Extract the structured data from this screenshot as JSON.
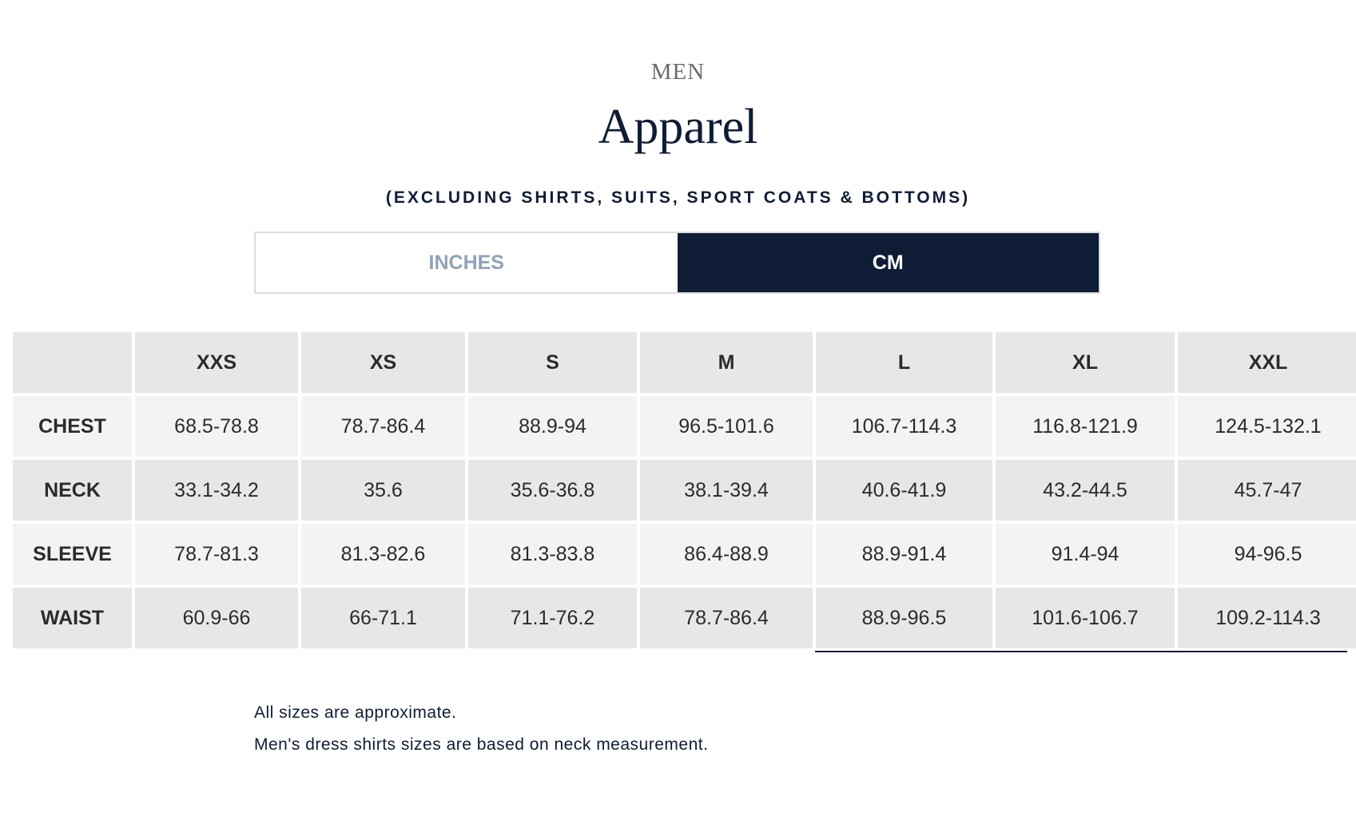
{
  "header": {
    "kicker": "MEN",
    "title": "Apparel",
    "subtitle": "(EXCLUDING SHIRTS, SUITS, SPORT COATS & BOTTOMS)"
  },
  "unit_toggle": {
    "options": [
      "INCHES",
      "CM"
    ],
    "selected": "CM"
  },
  "size_table": {
    "columns": [
      "",
      "XXS",
      "XS",
      "S",
      "M",
      "L",
      "XL",
      "XXL"
    ],
    "rows": [
      {
        "label": "CHEST",
        "values": [
          "68.5-78.8",
          "78.7-86.4",
          "88.9-94",
          "96.5-101.6",
          "106.7-114.3",
          "116.8-121.9",
          "124.5-132.1"
        ]
      },
      {
        "label": "NECK",
        "values": [
          "33.1-34.2",
          "35.6",
          "35.6-36.8",
          "38.1-39.4",
          "40.6-41.9",
          "43.2-44.5",
          "45.7-47"
        ]
      },
      {
        "label": "SLEEVE",
        "values": [
          "78.7-81.3",
          "81.3-82.6",
          "81.3-83.8",
          "86.4-88.9",
          "88.9-91.4",
          "91.4-94",
          "94-96.5"
        ]
      },
      {
        "label": "WAIST",
        "values": [
          "60.9-66",
          "66-71.1",
          "71.1-76.2",
          "78.7-86.4",
          "88.9-96.5",
          "101.6-106.7",
          "109.2-114.3"
        ]
      }
    ]
  },
  "notes": [
    "All sizes are approximate.",
    "Men's dress shirts sizes are based on neck measurement."
  ],
  "colors": {
    "navy": "#0e1c36",
    "row_dark": "#e6e7e9",
    "row_light": "#f3f3f3",
    "inactive_tab_text": "#8fa2b8"
  }
}
